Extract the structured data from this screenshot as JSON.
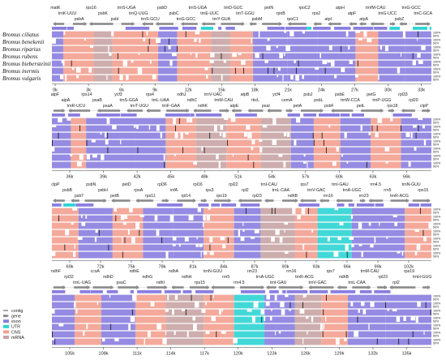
{
  "species": [
    "Bromus ciliatus",
    "Bromus benekenii",
    "Bromus riparius",
    "Bromus rubens",
    "Bromus biebersteinii",
    "Bromus inermis",
    "Bromus vulgaris"
  ],
  "percent_labels": [
    "100%",
    "50%"
  ],
  "legend": [
    "contig",
    "gene",
    "exon",
    "UTR",
    "CNS",
    "mRNA"
  ],
  "colors": {
    "exon": "#8a7ee0",
    "utr": "#2fd4d4",
    "cns": "#f3a08f",
    "mrna": "#c8a4a4",
    "gene_arrow": "#8a8a8a",
    "contig": "#222222"
  },
  "panels": [
    {
      "ticks": [
        "0k",
        "3k",
        "6k",
        "9k",
        "12k",
        "15k",
        "18k",
        "21k",
        "24k",
        "27k",
        "30k",
        "33k"
      ],
      "labels_top": [
        "matK",
        "trnK-UUU",
        "psbA",
        "rps16",
        "psbK",
        "psbI",
        "trnS-UGA",
        "trnQ-UUG",
        "trnS-GCU",
        "psbD",
        "psbC",
        "trnG-GCC",
        "trnS-UGA",
        "trnE-UUC",
        "trnY-GUA",
        "trnD-GUC",
        "trnT-GGU",
        "psbM",
        "petN",
        "rpoB",
        "rpoC1",
        "rpoC2",
        "rps2",
        "atpI",
        "atpH",
        "atpF",
        "atpA",
        "trnfM-CAU",
        "trnG-UCC",
        "psbZ",
        "trnG-GCC",
        "trnC-GCA"
      ]
    },
    {
      "ticks": [
        "36k",
        "39k",
        "42k",
        "45k",
        "48k",
        "51k",
        "54k",
        "57k",
        "60k",
        "63k",
        "66k"
      ],
      "labels_top": [
        "atpF",
        "atpA",
        "trnR-UCU",
        "rps14",
        "psaB",
        "psaA",
        "ycf3",
        "trnS-GGA",
        "trnT-UGU",
        "rps4",
        "trnL-UAA",
        "trnF-GAA",
        "ndhJ",
        "ndhC",
        "ndhK",
        "trnV-UAC",
        "trnM-CAU",
        "atpE",
        "atpB",
        "rbcL",
        "psaI",
        "ycf4",
        "cemA",
        "petA",
        "psbJ",
        "psbL",
        "psbF",
        "psbE",
        "trnW-CCA",
        "petL",
        "petG",
        "trnP-UGG",
        "rps18",
        "rpl33",
        "rpl20",
        "clpP"
      ]
    },
    {
      "ticks": [
        "69k",
        "72k",
        "75k",
        "78k",
        "81k",
        "84k",
        "87k",
        "90k",
        "93k",
        "96k",
        "99k",
        "102k"
      ],
      "labels_top": [
        "clpP",
        "psbB",
        "psbT",
        "psbN",
        "psbH",
        "petB",
        "petD",
        "rpoA",
        "rps11",
        "rpl36",
        "infA",
        "rpl14",
        "rpl16",
        "rps3",
        "rps19",
        "rpl22",
        "rpl2",
        "rpl23",
        "trnI-CAU",
        "trnL-CAA",
        "ndhB",
        "rps7",
        "trnV-GAC",
        "rrn16",
        "trnI-GAU",
        "trnA-UGC",
        "rrn23",
        "rrn4.5",
        "rrn5",
        "trnR-ACG",
        "trnN-GUU",
        "rps15"
      ]
    },
    {
      "ticks": [
        "105k",
        "108k",
        "111k",
        "114k",
        "117k",
        "120k",
        "123k",
        "126k",
        "129k",
        "132k",
        "135k"
      ],
      "labels_top": [
        "ndhF",
        "rpl32",
        "trnL-UAG",
        "ccsA",
        "ndhD",
        "psaC",
        "ndhE",
        "ndhG",
        "ndhI",
        "ndhA",
        "ndhH",
        "rps15",
        "trnN-GUU",
        "rrn5",
        "rrn4.5",
        "rrn23",
        "trnA-UGC",
        "trnI-GAU",
        "rrn16",
        "trnR-ACG",
        "trnV-GAC",
        "rps7",
        "ndhB",
        "trnL-CAA",
        "trnM-CAU",
        "rpl23",
        "rpl2",
        "rps19",
        "trnH-GUG"
      ]
    }
  ]
}
